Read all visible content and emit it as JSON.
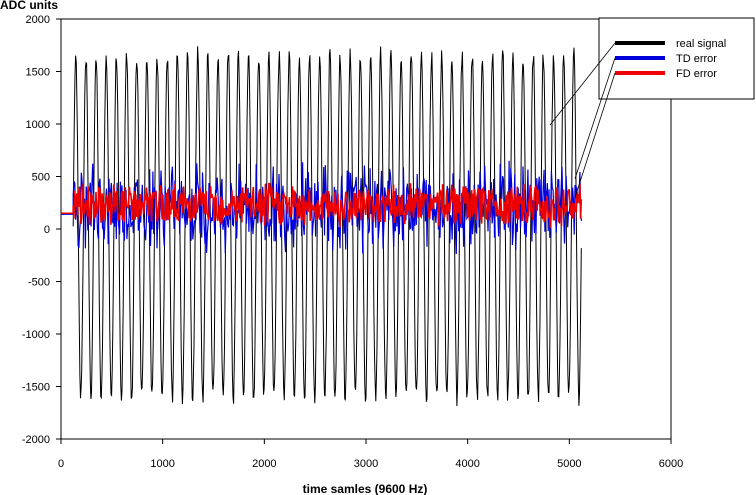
{
  "chart_data": {
    "type": "line",
    "ylabel": "ADC units",
    "xlabel": "time samles (9600 Hz)",
    "xlim": [
      0,
      6000
    ],
    "ylim": [
      -2000,
      2000
    ],
    "x_ticks": [
      0,
      1000,
      2000,
      3000,
      4000,
      5000,
      6000
    ],
    "y_ticks": [
      2000,
      1500,
      1000,
      500,
      0,
      -500,
      -1000,
      -1500,
      -2000
    ],
    "grid": false,
    "legend_position": "top-right",
    "signal_x_range": [
      120,
      5120
    ],
    "oscillation_period_samples": 100,
    "series": [
      {
        "name": "real signal",
        "color": "#000000",
        "min": -1700,
        "max": 1750
      },
      {
        "name": "TD error",
        "color": "#0000dd",
        "min": -250,
        "max": 680
      },
      {
        "name": "FD error",
        "color": "#ee0000",
        "min": 0,
        "max": 450
      }
    ]
  }
}
